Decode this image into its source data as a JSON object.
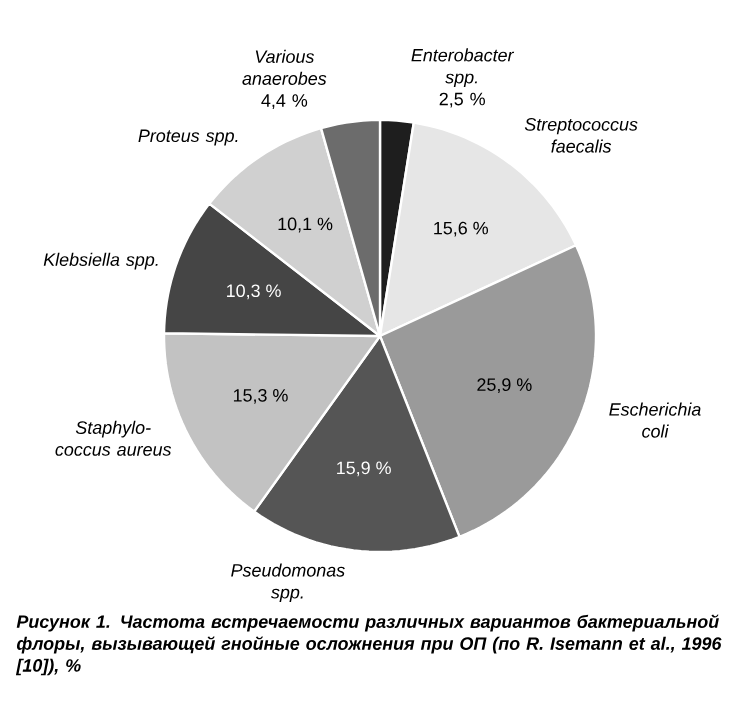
{
  "chart_data": {
    "type": "pie",
    "title": "Рисунок 1. Частота встречаемости различных вариантов бактериальной флоры, вызывающей гнойные осложнения при ОП (по R. Isemann et al., 1996 [10]), %",
    "categories": [
      "Enterobacter spp.",
      "Streptococcus faecalis",
      "Escherichia coli",
      "Pseudomonas spp.",
      "Staphylo-coccus aureus",
      "Klebsiella spp.",
      "Proteus spp.",
      "Various anaerobes"
    ],
    "values": [
      2.5,
      15.6,
      25.9,
      15.9,
      15.3,
      10.3,
      10.1,
      4.4
    ],
    "value_labels": [
      "2,5 %",
      "15,6 %",
      "25,9 %",
      "15,9 %",
      "15,3 %",
      "10,3 %",
      "10,1 %",
      "4,4 %"
    ],
    "colors": [
      "#1e1e1e",
      "#e6e6e6",
      "#9a9a9a",
      "#555555",
      "#c2c2c2",
      "#454545",
      "#d0d0d0",
      "#6c6c6c"
    ]
  }
}
